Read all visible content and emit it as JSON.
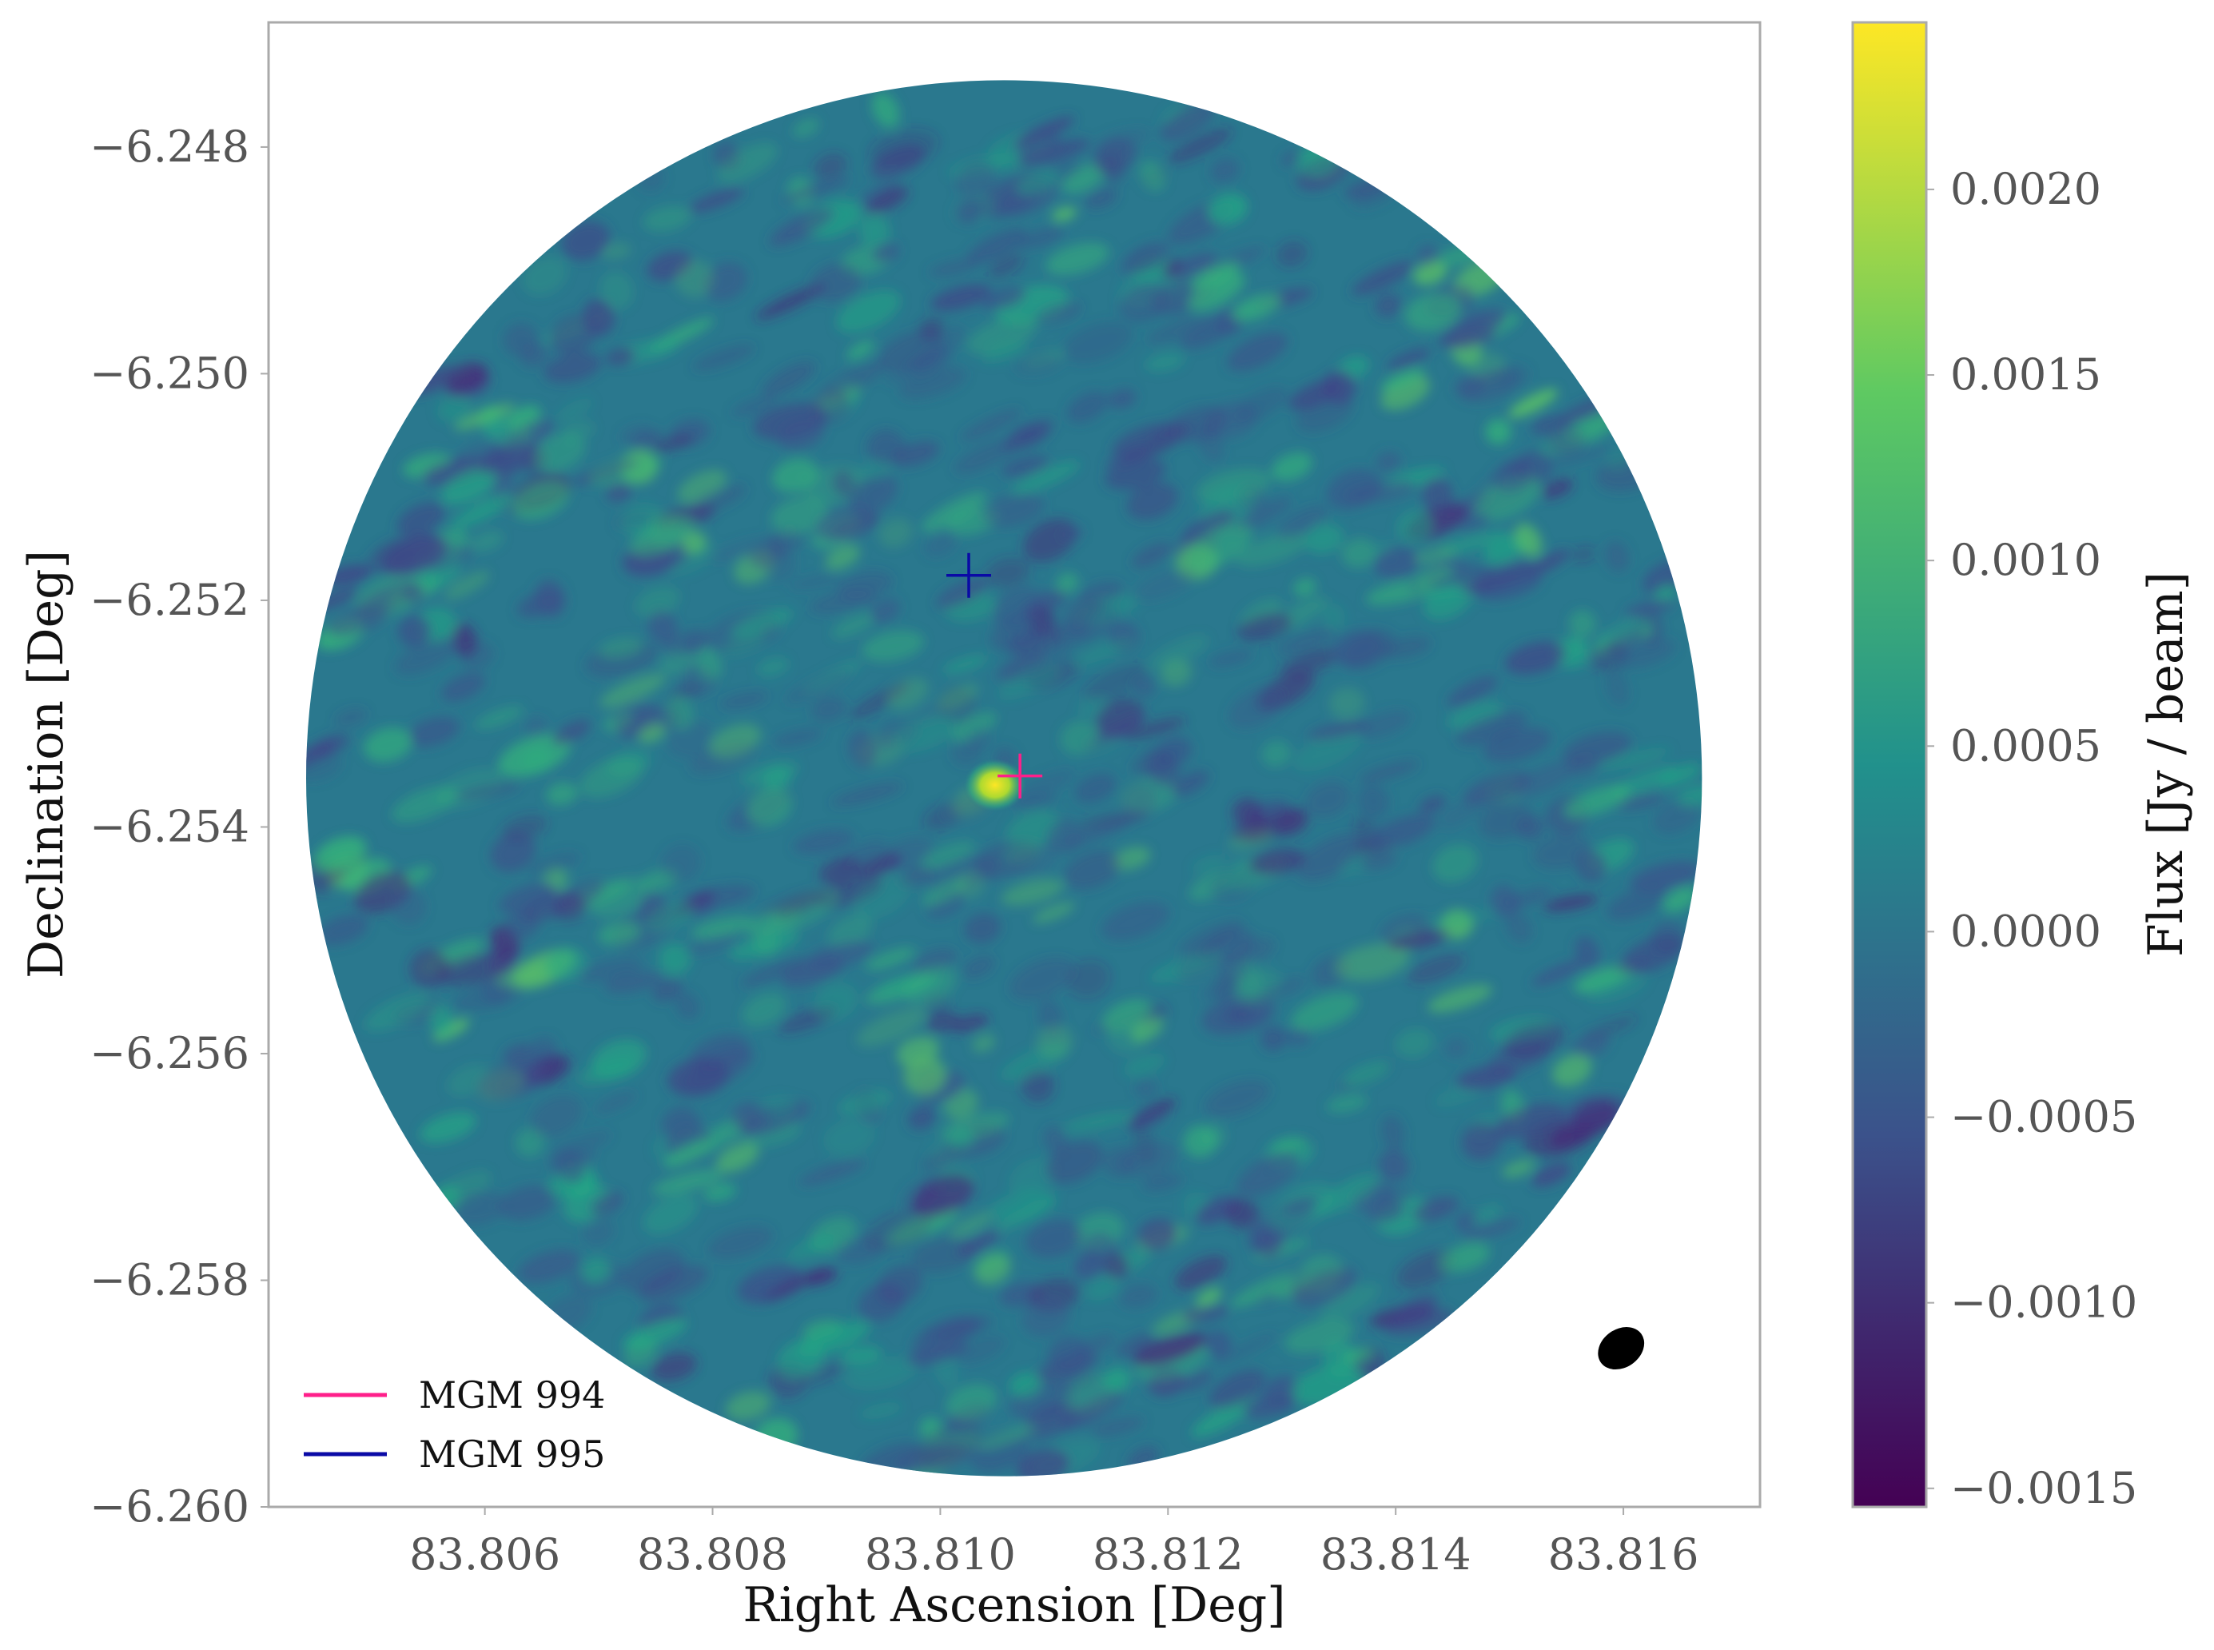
{
  "chart_data": {
    "type": "heatmap",
    "title": "",
    "xlabel": "Right Ascension [Deg]",
    "ylabel": "Declination [Deg]",
    "colorbar_label": "Flux [Jy / beam]",
    "colormap": "viridis",
    "colormap_stops": [
      "#440154",
      "#3b528b",
      "#21918c",
      "#5ec962",
      "#fde725"
    ],
    "xlim": [
      83.8041,
      83.8172
    ],
    "ylim": [
      -6.26,
      -6.2469
    ],
    "x_ticks": [
      83.806,
      83.808,
      83.81,
      83.812,
      83.814,
      83.816
    ],
    "x_tick_labels": [
      "83.806",
      "83.808",
      "83.810",
      "83.812",
      "83.814",
      "83.816"
    ],
    "y_ticks": [
      -6.248,
      -6.25,
      -6.252,
      -6.254,
      -6.256,
      -6.258,
      -6.26
    ],
    "y_tick_labels": [
      "−6.248",
      "−6.250",
      "−6.252",
      "−6.254",
      "−6.256",
      "−6.258",
      "−6.260"
    ],
    "colorbar_range": [
      -0.00155,
      0.00245
    ],
    "colorbar_ticks": [
      -0.0015,
      -0.001,
      -0.0005,
      0.0,
      0.0005,
      0.001,
      0.0015,
      0.002
    ],
    "colorbar_tick_labels": [
      "−0.0015",
      "−0.0010",
      "−0.0005",
      "0.0000",
      "0.0005",
      "0.0010",
      "0.0015",
      "0.0020"
    ],
    "field_of_view": {
      "center_x": 83.81056,
      "center_y": -6.25357,
      "radius_deg": 0.00613
    },
    "peak_source": {
      "x": 83.81048,
      "y": -6.25363,
      "flux": 0.0024
    },
    "markers": [
      {
        "name": "MGM 994",
        "x": 83.8107,
        "y": -6.25355,
        "color": "#ff1f8a"
      },
      {
        "name": "MGM 995",
        "x": 83.81025,
        "y": -6.25178,
        "color": "#0a0aa6"
      }
    ],
    "beam": {
      "x": 83.81598,
      "y": -6.2586
    },
    "legend": {
      "location": "lower-left",
      "entries": [
        "MGM 994",
        "MGM 995"
      ]
    },
    "grid": false
  }
}
